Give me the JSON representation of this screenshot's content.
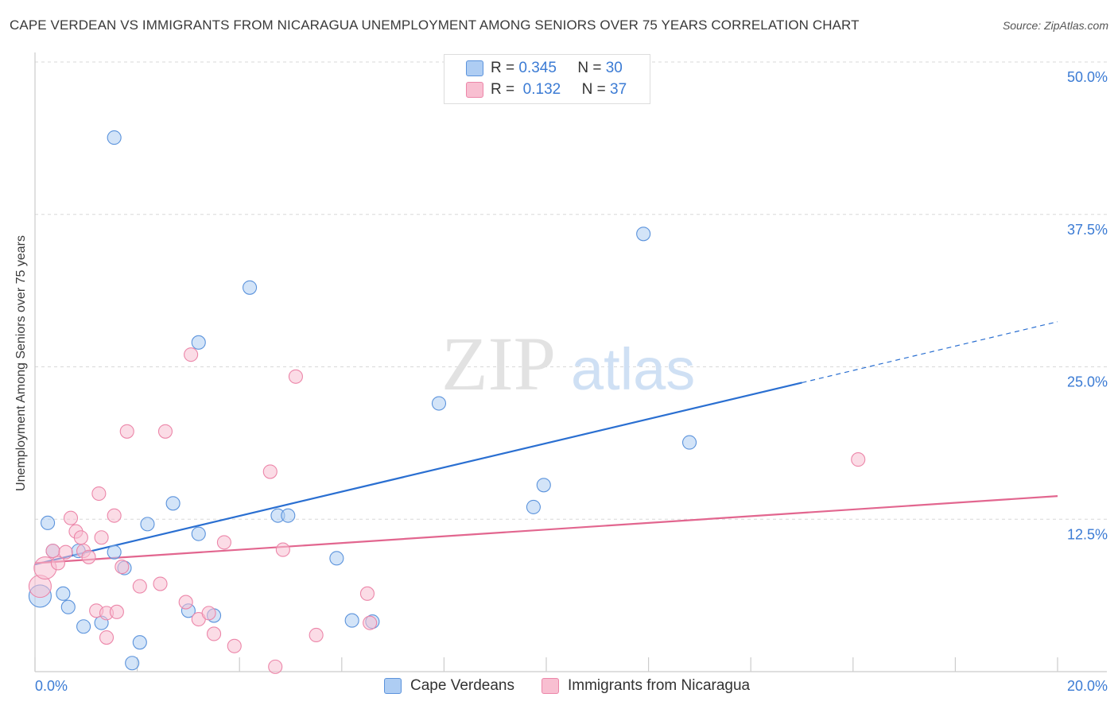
{
  "title": "CAPE VERDEAN VS IMMIGRANTS FROM NICARAGUA UNEMPLOYMENT AMONG SENIORS OVER 75 YEARS CORRELATION CHART",
  "source": "Source: ZipAtlas.com",
  "watermark": {
    "part1": "ZIP",
    "part2": "atlas"
  },
  "legend_top": [
    {
      "r_label": "R =",
      "r_value": "0.345",
      "n_label": "N =",
      "n_value": "30",
      "color": "#aecdf3"
    },
    {
      "r_label": "R =",
      "r_value": "0.132",
      "n_label": "N =",
      "n_value": "37",
      "color": "#f8bfd1"
    }
  ],
  "legend_bottom": [
    {
      "label": "Cape Verdeans",
      "color": "#aecdf3"
    },
    {
      "label": "Immigrants from Nicaragua",
      "color": "#f8bfd1"
    }
  ],
  "chart_data": {
    "type": "scatter",
    "title": "CAPE VERDEAN VS IMMIGRANTS FROM NICARAGUA UNEMPLOYMENT AMONG SENIORS OVER 75 YEARS CORRELATION CHART",
    "xlabel": "",
    "ylabel": "Unemployment Among Seniors over 75 years",
    "xlim": [
      0,
      20
    ],
    "ylim": [
      0,
      50
    ],
    "x_tick_labels": [
      {
        "value": 0,
        "label": "0.0%"
      },
      {
        "value": 20,
        "label": "20.0%"
      }
    ],
    "y_tick_labels": [
      {
        "value": 12.5,
        "label": "12.5%"
      },
      {
        "value": 25,
        "label": "25.0%"
      },
      {
        "value": 37.5,
        "label": "37.5%"
      },
      {
        "value": 50,
        "label": "50.0%"
      }
    ],
    "x_minor_ticks": [
      0,
      2,
      4,
      6,
      8,
      10,
      12,
      14,
      16,
      18,
      20
    ],
    "series": [
      {
        "name": "Cape Verdeans",
        "color": "#5b93dc",
        "fill": "#aecdf3",
        "trend": {
          "x0": 0,
          "y0": 8.8,
          "x1": 15.0,
          "y1": 23.7,
          "x_dash_end": 20,
          "y_dash_end": 28.7,
          "line_color": "#2a6fd1"
        },
        "points": [
          {
            "x": 0.1,
            "y": 6.2,
            "big": true
          },
          {
            "x": 0.25,
            "y": 12.2
          },
          {
            "x": 0.35,
            "y": 9.9
          },
          {
            "x": 0.55,
            "y": 6.4
          },
          {
            "x": 0.65,
            "y": 5.3
          },
          {
            "x": 0.85,
            "y": 9.9
          },
          {
            "x": 0.95,
            "y": 3.7
          },
          {
            "x": 1.3,
            "y": 4.0
          },
          {
            "x": 1.55,
            "y": 43.8
          },
          {
            "x": 1.55,
            "y": 9.8
          },
          {
            "x": 1.75,
            "y": 8.5
          },
          {
            "x": 1.9,
            "y": 0.7
          },
          {
            "x": 2.05,
            "y": 2.4
          },
          {
            "x": 2.2,
            "y": 12.1
          },
          {
            "x": 2.7,
            "y": 13.8
          },
          {
            "x": 3.0,
            "y": 5.0
          },
          {
            "x": 3.2,
            "y": 27.0
          },
          {
            "x": 3.2,
            "y": 11.3
          },
          {
            "x": 3.5,
            "y": 4.6
          },
          {
            "x": 4.2,
            "y": 31.5
          },
          {
            "x": 4.75,
            "y": 12.8
          },
          {
            "x": 4.95,
            "y": 12.8
          },
          {
            "x": 5.9,
            "y": 9.3
          },
          {
            "x": 6.2,
            "y": 4.2
          },
          {
            "x": 6.6,
            "y": 4.1
          },
          {
            "x": 7.9,
            "y": 22.0
          },
          {
            "x": 9.75,
            "y": 13.5
          },
          {
            "x": 9.95,
            "y": 15.3
          },
          {
            "x": 11.9,
            "y": 35.9
          },
          {
            "x": 12.8,
            "y": 18.8
          }
        ]
      },
      {
        "name": "Immigrants from Nicaragua",
        "color": "#ec86a9",
        "fill": "#f8bfd1",
        "trend": {
          "x0": 0,
          "y0": 8.9,
          "x1": 20,
          "y1": 14.4,
          "line_color": "#e2668f"
        },
        "points": [
          {
            "x": 0.1,
            "y": 7.0,
            "big": true
          },
          {
            "x": 0.2,
            "y": 8.5,
            "big": true
          },
          {
            "x": 0.35,
            "y": 9.9
          },
          {
            "x": 0.45,
            "y": 8.9
          },
          {
            "x": 0.6,
            "y": 9.8
          },
          {
            "x": 0.7,
            "y": 12.6
          },
          {
            "x": 0.8,
            "y": 11.5
          },
          {
            "x": 0.9,
            "y": 11.0
          },
          {
            "x": 0.95,
            "y": 9.9
          },
          {
            "x": 1.05,
            "y": 9.4
          },
          {
            "x": 1.2,
            "y": 5.0
          },
          {
            "x": 1.25,
            "y": 14.6
          },
          {
            "x": 1.3,
            "y": 11.0
          },
          {
            "x": 1.4,
            "y": 4.8
          },
          {
            "x": 1.4,
            "y": 2.8
          },
          {
            "x": 1.55,
            "y": 12.8
          },
          {
            "x": 1.6,
            "y": 4.9
          },
          {
            "x": 1.7,
            "y": 8.6
          },
          {
            "x": 1.8,
            "y": 19.7
          },
          {
            "x": 2.05,
            "y": 7.0
          },
          {
            "x": 2.45,
            "y": 7.2
          },
          {
            "x": 2.55,
            "y": 19.7
          },
          {
            "x": 2.95,
            "y": 5.7
          },
          {
            "x": 3.05,
            "y": 26.0
          },
          {
            "x": 3.2,
            "y": 4.3
          },
          {
            "x": 3.4,
            "y": 4.8
          },
          {
            "x": 3.5,
            "y": 3.1
          },
          {
            "x": 3.7,
            "y": 10.6
          },
          {
            "x": 3.9,
            "y": 2.1
          },
          {
            "x": 4.6,
            "y": 16.4
          },
          {
            "x": 4.7,
            "y": 0.4
          },
          {
            "x": 4.85,
            "y": 10.0
          },
          {
            "x": 5.1,
            "y": 24.2
          },
          {
            "x": 5.5,
            "y": 3.0
          },
          {
            "x": 6.5,
            "y": 6.4
          },
          {
            "x": 6.55,
            "y": 4.0
          },
          {
            "x": 16.1,
            "y": 17.4
          }
        ]
      }
    ]
  }
}
